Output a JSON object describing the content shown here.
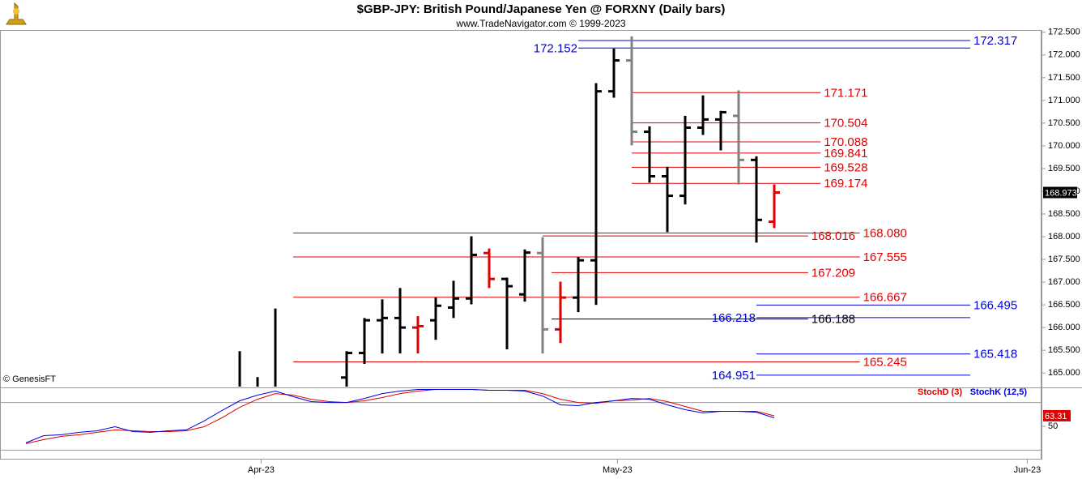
{
  "chart_data": [
    {
      "type": "ohlc",
      "title": "$GBP-JPY:  British Pound/Japanese Yen @ FORXNY  (Daily bars)",
      "subtitle": "www.TradeNavigator.com © 1999-2023",
      "watermark": "© GenesisFT",
      "x": [
        12,
        13,
        14,
        18,
        19,
        20,
        21,
        22,
        23,
        24,
        25,
        26,
        27,
        28,
        29,
        30,
        31,
        32,
        33,
        34,
        35,
        36,
        37,
        38,
        39,
        40,
        41,
        42
      ],
      "open": [
        164.55,
        164.55,
        164.6,
        164.9,
        165.44,
        166.16,
        166.21,
        166.0,
        166.16,
        166.44,
        166.64,
        167.64,
        167.07,
        166.73,
        167.64,
        165.96,
        166.66,
        167.48,
        171.2,
        171.88,
        170.31,
        169.33,
        168.9,
        170.4,
        170.58,
        170.66,
        169.69,
        168.33
      ],
      "high": [
        165.48,
        164.91,
        166.42,
        165.48,
        166.21,
        166.62,
        166.87,
        166.25,
        166.66,
        167.03,
        168.01,
        167.74,
        167.1,
        167.72,
        167.99,
        167.01,
        167.55,
        171.38,
        172.14,
        172.41,
        170.43,
        169.54,
        170.66,
        171.11,
        170.77,
        171.22,
        169.77,
        169.15
      ],
      "low": [
        164.5,
        164.5,
        164.5,
        164.6,
        165.2,
        165.43,
        165.43,
        165.43,
        165.73,
        166.21,
        166.51,
        166.87,
        165.52,
        166.57,
        165.43,
        165.66,
        166.34,
        166.5,
        171.06,
        170.01,
        169.19,
        168.1,
        168.71,
        170.24,
        169.9,
        169.15,
        167.87,
        168.19
      ],
      "close": [
        164.6,
        164.6,
        164.65,
        165.44,
        166.16,
        166.21,
        166.0,
        166.03,
        166.48,
        166.64,
        167.6,
        167.07,
        166.91,
        167.65,
        165.96,
        166.66,
        167.48,
        171.2,
        171.88,
        170.31,
        169.33,
        168.9,
        170.4,
        170.58,
        170.74,
        169.69,
        168.37,
        168.973
      ],
      "colors": [
        "#000",
        "#000",
        "#000",
        "#000",
        "#000",
        "#000",
        "#000",
        "#e00000",
        "#000",
        "#000",
        "#000",
        "#e00000",
        "#000",
        "#000",
        "#808080",
        "#e00000",
        "#000",
        "#000",
        "#000",
        "#808080",
        "#000",
        "#000",
        "#000",
        "#000",
        "#000",
        "#808080",
        "#000",
        "#e00000"
      ],
      "last_price": 168.973,
      "xlim": [
        -1.4545,
        57
      ],
      "xticks": [
        {
          "value": 13.2,
          "label": "Apr-23"
        },
        {
          "value": 33.2,
          "label": "May-23"
        },
        {
          "value": 56.2,
          "label": "Jun-23"
        }
      ],
      "ylim": [
        164.7,
        172.55
      ],
      "yticks": [
        {
          "value": 172.5,
          "label": "172.500"
        },
        {
          "value": 172,
          "label": "172.000"
        },
        {
          "value": 171.5,
          "label": "171.500"
        },
        {
          "value": 171,
          "label": "171.000"
        },
        {
          "value": 170.5,
          "label": "170.500"
        },
        {
          "value": 170,
          "label": "170.000"
        },
        {
          "value": 169.5,
          "label": "169.500"
        },
        {
          "value": 169,
          "label": "169.000"
        },
        {
          "value": 168.5,
          "label": "168.500"
        },
        {
          "value": 168,
          "label": "168.000"
        },
        {
          "value": 167.5,
          "label": "167.500"
        },
        {
          "value": 167,
          "label": "167.000"
        },
        {
          "value": 166.5,
          "label": "166.500"
        },
        {
          "value": 166,
          "label": "166.000"
        },
        {
          "value": 165.5,
          "label": "165.500"
        },
        {
          "value": 165,
          "label": "165.000"
        }
      ],
      "levels": [
        {
          "value": 172.317,
          "label": "172.317",
          "color": "#0000e0",
          "from": 31,
          "to": 53,
          "side": "end"
        },
        {
          "value": 172.152,
          "label": "172.152",
          "color": "#0000e0",
          "from": 31,
          "to": 53,
          "side": "start"
        },
        {
          "value": 171.171,
          "label": "171.171",
          "color": "#e00000",
          "from": 34,
          "to": 44.6,
          "side": "end"
        },
        {
          "value": 170.504,
          "label": "170.504",
          "color": "#e00000",
          "from": 34,
          "to": 44.6,
          "side": "end"
        },
        {
          "value": 170.088,
          "label": "170.088",
          "color": "#e00000",
          "from": 34,
          "to": 44.6,
          "side": "end"
        },
        {
          "value": 169.841,
          "label": "169.841",
          "color": "#e00000",
          "from": 34,
          "to": 44.6,
          "side": "end"
        },
        {
          "value": 169.528,
          "label": "169.528",
          "color": "#e00000",
          "from": 34,
          "to": 44.6,
          "side": "end"
        },
        {
          "value": 169.174,
          "label": "169.174",
          "color": "#e00000",
          "from": 34,
          "to": 44.6,
          "side": "end"
        },
        {
          "value": 168.08,
          "label": "168.080",
          "color": "#e00000",
          "from": 15,
          "to": 46.8,
          "side": "end"
        },
        {
          "value": 168.016,
          "label": "168.016",
          "color": "#e00000",
          "from": 29,
          "to": 43.9,
          "side": "end"
        },
        {
          "value": 167.555,
          "label": "167.555",
          "color": "#e00000",
          "from": 15,
          "to": 46.8,
          "side": "end"
        },
        {
          "value": 167.209,
          "label": "167.209",
          "color": "#e00000",
          "from": 29.5,
          "to": 43.9,
          "side": "end"
        },
        {
          "value": 166.667,
          "label": "166.667",
          "color": "#e00000",
          "from": 15,
          "to": 46.8,
          "side": "end"
        },
        {
          "value": 166.495,
          "label": "166.495",
          "color": "#0000e0",
          "from": 41,
          "to": 53,
          "side": "end"
        },
        {
          "value": 166.218,
          "label": "166.218",
          "color": "#0000e0",
          "from": 41,
          "to": 53,
          "side": "start"
        },
        {
          "value": 166.188,
          "label": "166.188",
          "color": "#000000",
          "from": 29.5,
          "to": 43.9,
          "side": "end"
        },
        {
          "value": 165.418,
          "label": "165.418",
          "color": "#0000e0",
          "from": 41,
          "to": 53,
          "side": "end"
        },
        {
          "value": 165.245,
          "label": "165.245",
          "color": "#e00000",
          "from": 15,
          "to": 46.8,
          "side": "end"
        },
        {
          "value": 164.951,
          "label": "164.951",
          "color": "#0000e0",
          "from": 41,
          "to": 53,
          "side": "start"
        }
      ]
    },
    {
      "type": "line",
      "x": [
        0,
        1,
        2,
        3,
        4,
        5,
        6,
        7,
        8,
        9,
        10,
        11,
        12,
        13,
        14,
        15,
        16,
        17,
        18,
        19,
        20,
        21,
        22,
        23,
        24,
        25,
        26,
        27,
        28,
        29,
        30,
        31,
        32,
        33,
        34,
        35,
        36,
        37,
        38,
        39,
        40,
        41,
        42
      ],
      "xlim": [
        -1.4545,
        57
      ],
      "ylim": [
        0,
        100
      ],
      "yticks": [
        50
      ],
      "levels": [
        20,
        80
      ],
      "series": [
        {
          "name": "StochD (3)",
          "color": "#e00000",
          "values": [
            28.2,
            33.3,
            37.3,
            39.4,
            42.4,
            45.5,
            44.4,
            43.4,
            43.4,
            44.4,
            49.5,
            60.7,
            73.9,
            84.1,
            91.2,
            89.3,
            84.1,
            81.1,
            80.0,
            82.1,
            86.2,
            91.2,
            94.4,
            96.4,
            96.4,
            96.4,
            95.4,
            95.4,
            95.4,
            91.2,
            84.1,
            80.0,
            79.0,
            82.1,
            83.1,
            85.1,
            81.1,
            75.0,
            68.9,
            68.9,
            68.9,
            68.9,
            63.31
          ]
        },
        {
          "name": "StochK (12,5)",
          "color": "#0000e0",
          "values": [
            29.2,
            38.3,
            39.4,
            42.4,
            44.4,
            49.5,
            43.4,
            42.4,
            44.4,
            45.5,
            56.7,
            69.9,
            82.1,
            89.3,
            94.4,
            87.3,
            81.1,
            80.0,
            80.0,
            85.1,
            91.2,
            94.4,
            96.4,
            96.4,
            96.4,
            96.4,
            95.4,
            95.4,
            94.4,
            88.2,
            77.0,
            76.0,
            80.0,
            82.1,
            85.1,
            84.1,
            77.0,
            70.9,
            66.8,
            68.9,
            68.9,
            67.8,
            60.7
          ]
        }
      ]
    }
  ]
}
